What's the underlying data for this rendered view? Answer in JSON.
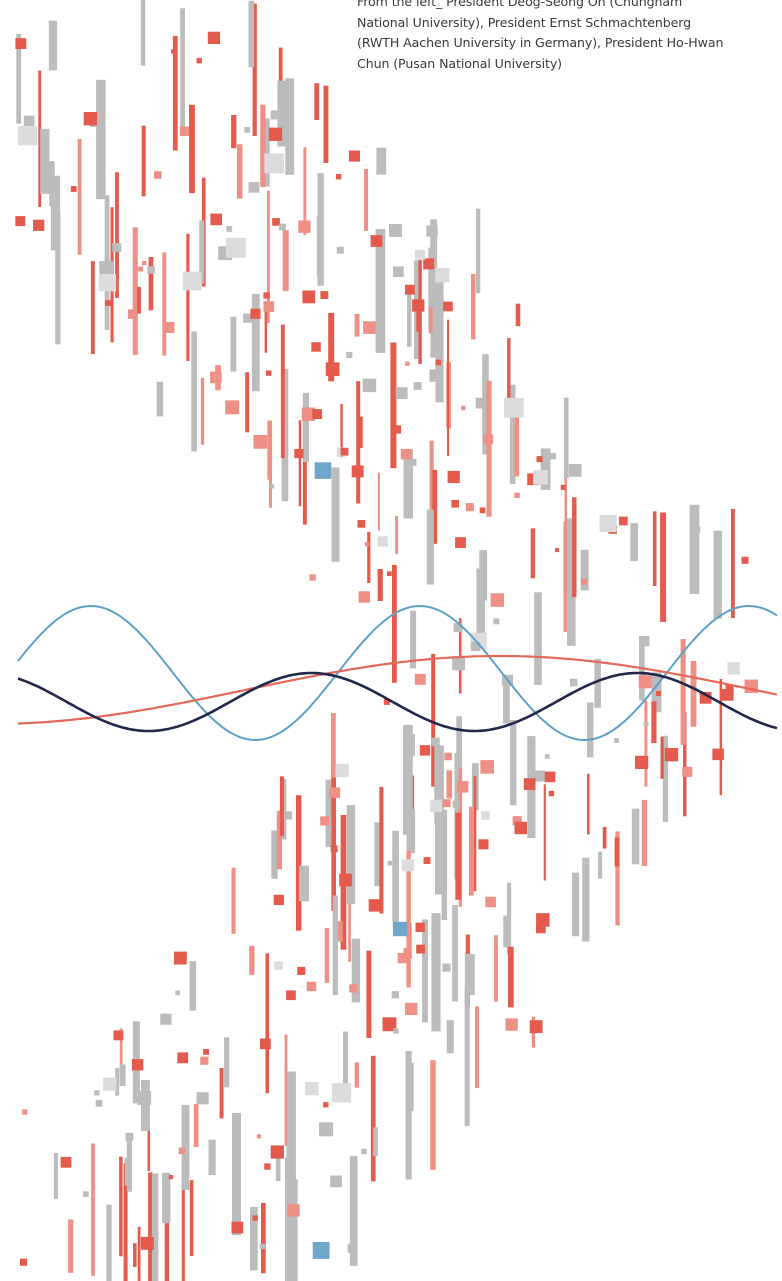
{
  "caption": {
    "lines": [
      "From the left_ President Deog-Seong Oh (Chungnam",
      "National University), President Ernst Schmachtenberg",
      "(RWTH Aachen University in Germany), President Ho-Hwan",
      "Chun (Pusan National University)"
    ]
  },
  "colors": {
    "red": "#e45a4c",
    "light_red": "#ee9086",
    "gray": "#bcbcbc",
    "light_gray": "#dcdcdc",
    "blue": "#6fa7cc",
    "wave_blue": "#5ea0c8",
    "wave_navy": "#22284a",
    "wave_red": "#e5685a",
    "caption_text": "#3a3a3a"
  }
}
